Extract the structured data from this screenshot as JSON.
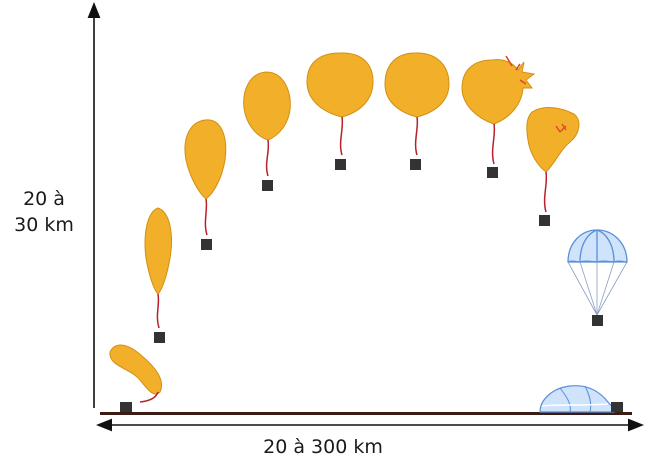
{
  "labels": {
    "altitude_line1": "20 à",
    "altitude_line2": "30 km",
    "distance": "20 à 300 km"
  },
  "colors": {
    "balloon": "#f2b02a",
    "balloon_edge": "#d28f12",
    "string": "#b8202a",
    "payload": "#333333",
    "parachute_light": "#cfe3fb",
    "parachute_dark": "#5b8fd8",
    "ground": "#3a1c14",
    "axis": "#111111"
  },
  "stages": [
    "launch",
    "ascent-1",
    "ascent-2",
    "ascent-3",
    "ascent-4",
    "ceiling",
    "burst",
    "deflating",
    "parachute-descent",
    "landing"
  ]
}
